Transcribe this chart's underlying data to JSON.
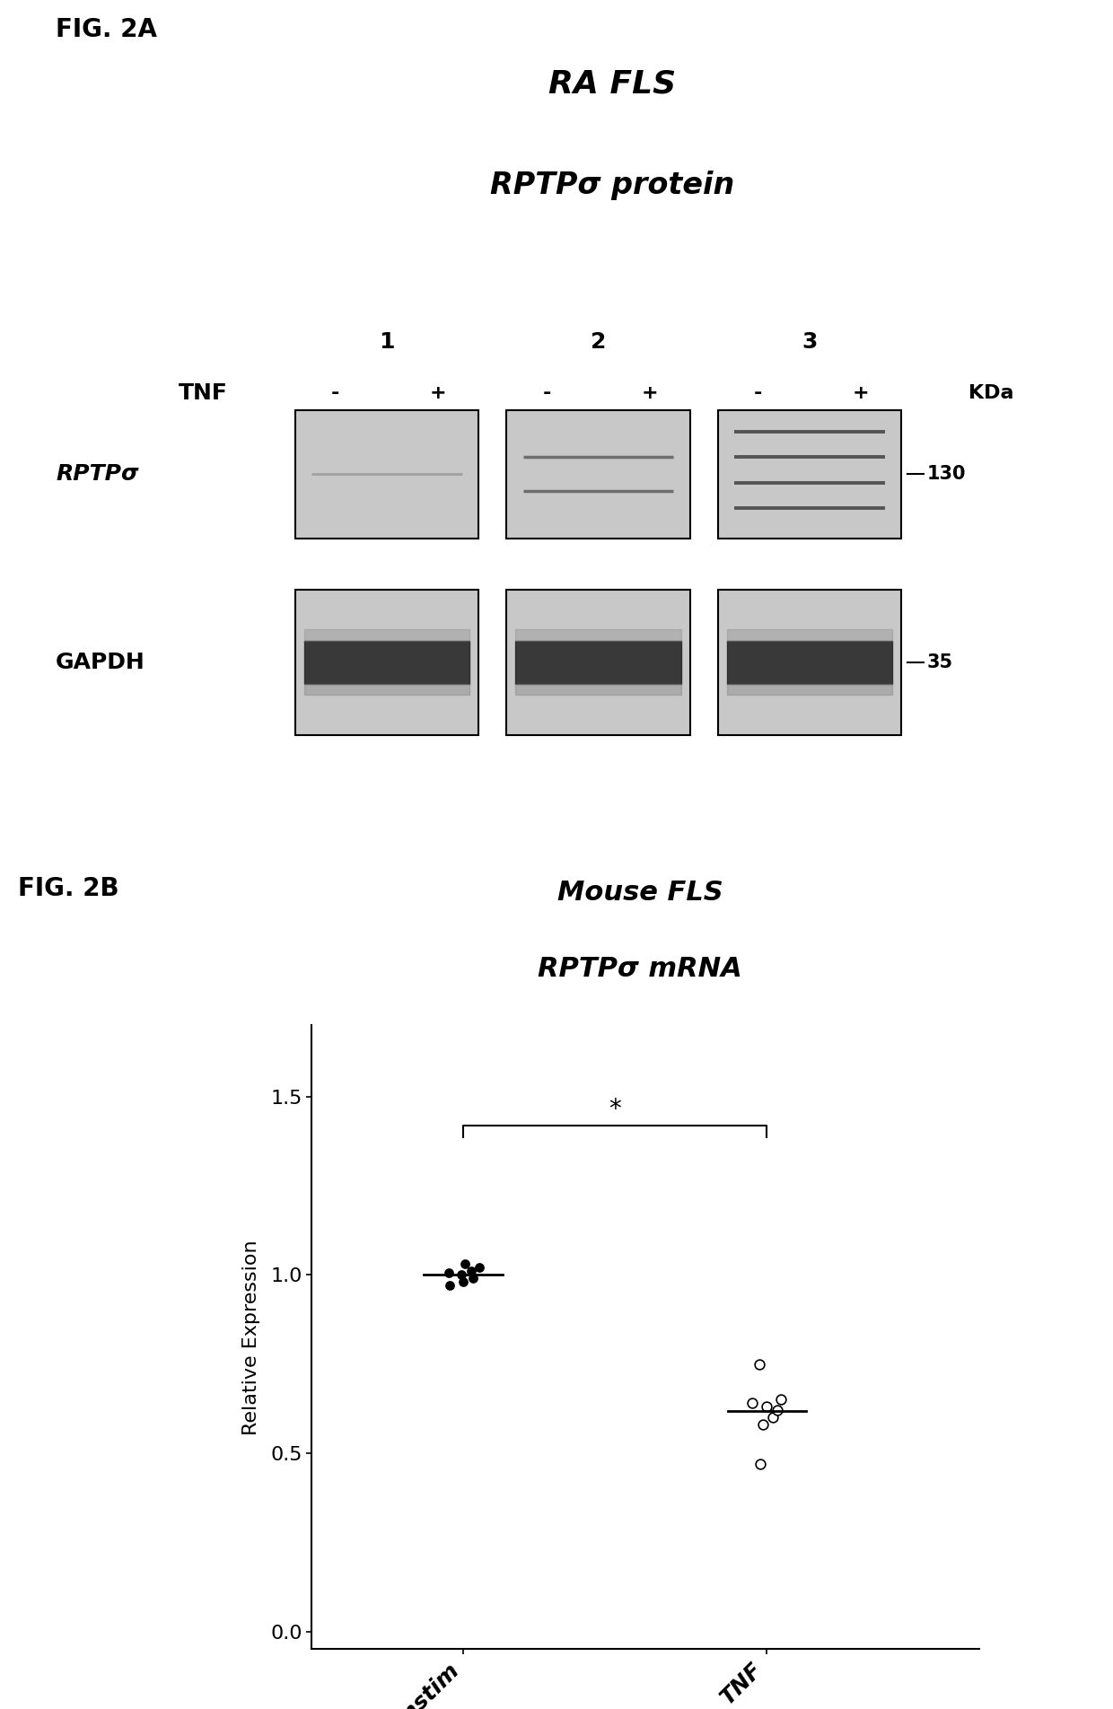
{
  "fig2a_title_line1": "RA FLS",
  "fig2a_title_line2": "RPTPσ protein",
  "fig2a_label": "FIG. 2A",
  "fig2b_label": "FIG. 2B",
  "fig2b_title_line1": "Mouse FLS",
  "fig2b_title_line2": "RPTPσ mRNA",
  "tnf_label": "TNF",
  "kda_label": "KDa",
  "lane_numbers": [
    "1",
    "2",
    "3"
  ],
  "tnf_signs": [
    "-",
    "+",
    "-",
    "+",
    "-",
    "+"
  ],
  "rptp_label": "RPTPσ",
  "gapdh_label": "GAPDH",
  "kda_130": "130",
  "kda_35": "35",
  "unstim_data": [
    0.97,
    0.99,
    1.0,
    1.01,
    1.02,
    1.03,
    0.98,
    1.005
  ],
  "tnf_data": [
    0.75,
    0.63,
    0.6,
    0.62,
    0.58,
    0.64,
    0.47,
    0.65
  ],
  "ylabel": "Relative Expression",
  "xtick_labels": [
    "Unstim",
    "TNF"
  ],
  "yticks": [
    0.0,
    0.5,
    1.0,
    1.5
  ],
  "ylim": [
    -0.05,
    1.7
  ],
  "significance": "*",
  "bg_color": "#ffffff",
  "dot_color_filled": "#000000",
  "dot_color_open": "#ffffff",
  "mean_line_color": "#000000",
  "panel_bg": "#c8c8c8",
  "band_dark": "#303030",
  "band_medium": "#606060"
}
